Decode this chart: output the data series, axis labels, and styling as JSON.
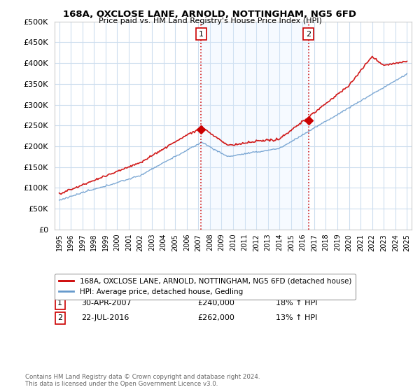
{
  "title": "168A, OXCLOSE LANE, ARNOLD, NOTTINGHAM, NG5 6FD",
  "subtitle": "Price paid vs. HM Land Registry's House Price Index (HPI)",
  "ylim": [
    0,
    500000
  ],
  "yticks": [
    0,
    50000,
    100000,
    150000,
    200000,
    250000,
    300000,
    350000,
    400000,
    450000,
    500000
  ],
  "sale1_date": "30-APR-2007",
  "sale1_price": 240000,
  "sale1_hpi": "18% ↑ HPI",
  "sale2_date": "22-JUL-2016",
  "sale2_price": 262000,
  "sale2_hpi": "13% ↑ HPI",
  "legend_property": "168A, OXCLOSE LANE, ARNOLD, NOTTINGHAM, NG5 6FD (detached house)",
  "legend_hpi": "HPI: Average price, detached house, Gedling",
  "property_color": "#cc0000",
  "hpi_color": "#6699cc",
  "vline_color": "#cc0000",
  "shade_color": "#ddeeff",
  "grid_color": "#ccddee",
  "footer": "Contains HM Land Registry data © Crown copyright and database right 2024.\nThis data is licensed under the Open Government Licence v3.0.",
  "background_color": "#ffffff",
  "plot_bg_color": "#ffffff",
  "start_year": 1995,
  "end_year": 2025,
  "sale1_x": 2007.25,
  "sale2_x": 2016.5
}
